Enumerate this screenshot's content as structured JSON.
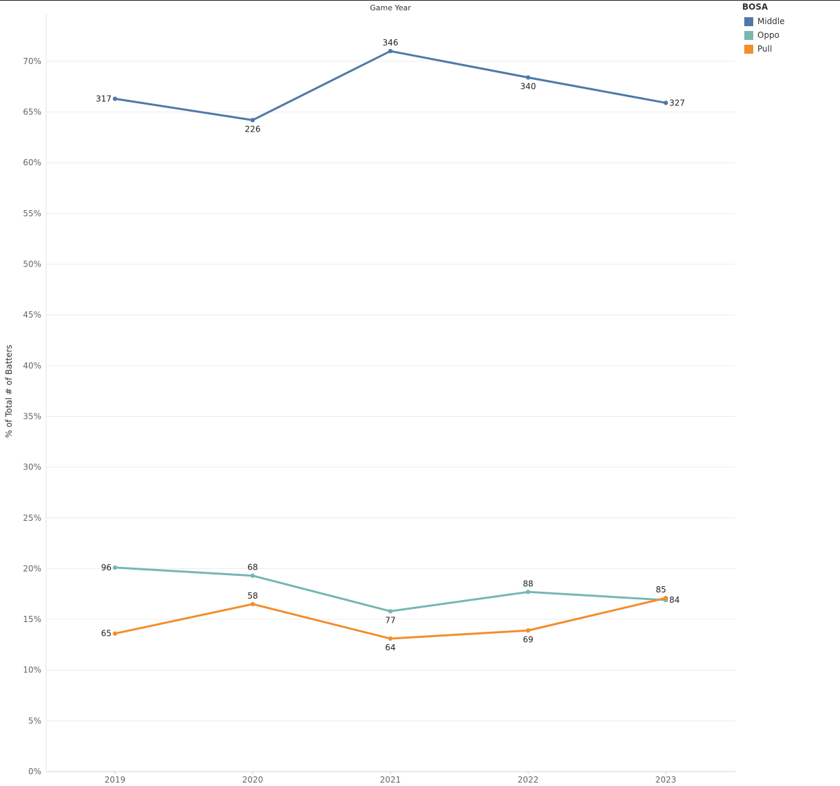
{
  "chart_data": {
    "type": "line",
    "title": "Game Year",
    "xlabel": "",
    "ylabel": "% of Total # of Batters",
    "categories": [
      "2019",
      "2020",
      "2021",
      "2022",
      "2023"
    ],
    "ylim": [
      0,
      74
    ],
    "yticks": [
      0,
      5,
      10,
      15,
      20,
      25,
      30,
      35,
      40,
      45,
      50,
      55,
      60,
      65,
      70
    ],
    "ytick_labels": [
      "0%",
      "5%",
      "10%",
      "15%",
      "20%",
      "25%",
      "30%",
      "35%",
      "40%",
      "45%",
      "50%",
      "55%",
      "60%",
      "65%",
      "70%"
    ],
    "grid": true,
    "legend_position": "top-right",
    "legend_title": "BOSA",
    "series": [
      {
        "name": "Middle",
        "color": "#4e79a7",
        "values": [
          66.3,
          64.2,
          71.0,
          68.4,
          65.9
        ],
        "labels": [
          "317",
          "226",
          "346",
          "340",
          "327"
        ],
        "label_pos": [
          "left",
          "below",
          "above",
          "below",
          "right"
        ]
      },
      {
        "name": "Oppo",
        "color": "#76b7b2",
        "values": [
          20.1,
          19.3,
          15.8,
          17.7,
          16.9
        ],
        "labels": [
          "96",
          "68",
          "77",
          "88",
          "84"
        ],
        "label_pos": [
          "left",
          "above",
          "below",
          "above",
          "right"
        ]
      },
      {
        "name": "Pull",
        "color": "#f28e2b",
        "values": [
          13.6,
          16.5,
          13.1,
          13.9,
          17.1
        ],
        "labels": [
          "65",
          "58",
          "64",
          "69",
          "85"
        ],
        "label_pos": [
          "left",
          "above",
          "below",
          "below",
          "above-left"
        ]
      }
    ]
  }
}
